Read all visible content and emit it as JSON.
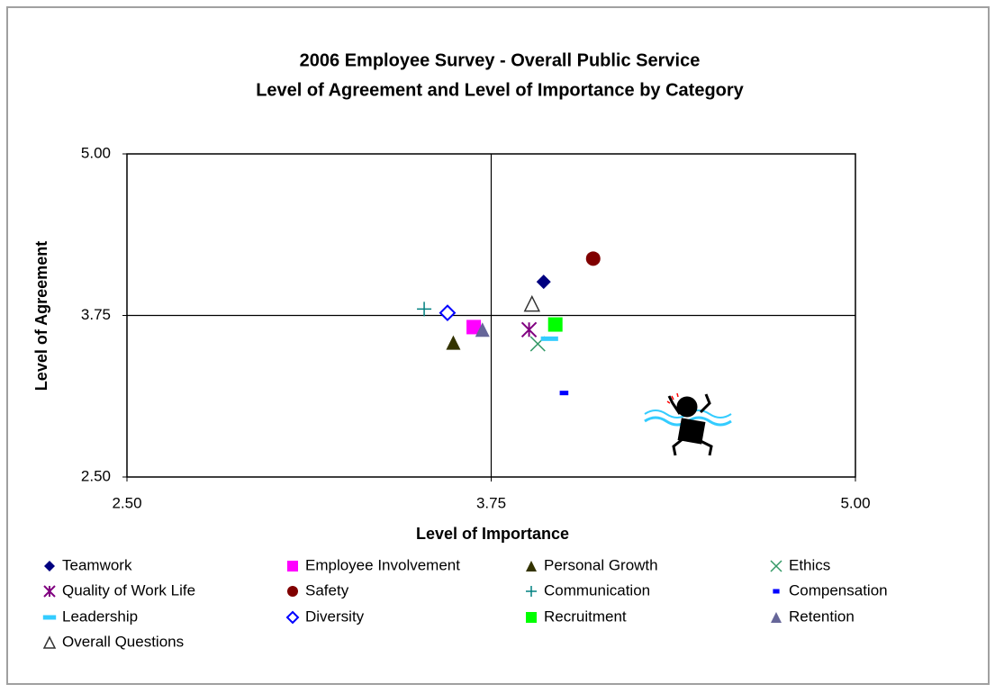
{
  "chart_data": {
    "type": "scatter",
    "title": "2006 Employee Survey - Overall Public Service",
    "subtitle": "Level of Agreement and Level of Importance by Category",
    "x_label": "Level of Importance",
    "y_label": "Level of Agreement",
    "xlim": [
      2.5,
      5.0
    ],
    "ylim": [
      2.5,
      5.0
    ],
    "xticks": [
      {
        "value": 2.5,
        "label": "2.50"
      },
      {
        "value": 3.75,
        "label": "3.75"
      },
      {
        "value": 5.0,
        "label": "5.00"
      }
    ],
    "yticks": [
      {
        "value": 2.5,
        "label": "2.50"
      },
      {
        "value": 3.75,
        "label": "3.75"
      },
      {
        "value": 5.0,
        "label": "5.00"
      }
    ],
    "crosshair": {
      "x": 3.75,
      "y": 3.75
    },
    "series": [
      {
        "name": "Teamwork",
        "color": "#000080",
        "marker": "diamond",
        "x": [
          3.93
        ],
        "values": [
          4.01
        ]
      },
      {
        "name": "Employee Involvement",
        "color": "#ff00ff",
        "marker": "square",
        "x": [
          3.69
        ],
        "values": [
          3.66
        ]
      },
      {
        "name": "Personal Growth",
        "color": "#333300",
        "marker": "triangle",
        "x": [
          3.62
        ],
        "values": [
          3.54
        ]
      },
      {
        "name": "Ethics",
        "color": "#339966",
        "marker": "x",
        "x": [
          3.91
        ],
        "values": [
          3.53
        ]
      },
      {
        "name": "Quality of Work Life",
        "color": "#800080",
        "marker": "asterisk",
        "x": [
          3.88
        ],
        "values": [
          3.64
        ]
      },
      {
        "name": "Safety",
        "color": "#800000",
        "marker": "circle",
        "x": [
          4.1
        ],
        "values": [
          4.19
        ]
      },
      {
        "name": "Communication",
        "color": "#008080",
        "marker": "plus",
        "x": [
          3.52
        ],
        "values": [
          3.8
        ]
      },
      {
        "name": "Compensation",
        "color": "#0000ff",
        "marker": "dash",
        "x": [
          4.0
        ],
        "values": [
          3.15
        ]
      },
      {
        "name": "Leadership",
        "color": "#33ccff",
        "marker": "longdash",
        "x": [
          3.95
        ],
        "values": [
          3.57
        ]
      },
      {
        "name": "Diversity",
        "color": "#0000ff",
        "marker": "open-diamond",
        "x": [
          3.6
        ],
        "values": [
          3.77
        ]
      },
      {
        "name": "Recruitment",
        "color": "#00ff00",
        "marker": "square",
        "x": [
          3.97
        ],
        "values": [
          3.68
        ]
      },
      {
        "name": "Retention",
        "color": "#666699",
        "marker": "triangle",
        "x": [
          3.72
        ],
        "values": [
          3.64
        ]
      },
      {
        "name": "Overall Questions",
        "color": "#333333",
        "marker": "open-triangle",
        "x": [
          3.89
        ],
        "values": [
          3.84
        ]
      }
    ]
  }
}
